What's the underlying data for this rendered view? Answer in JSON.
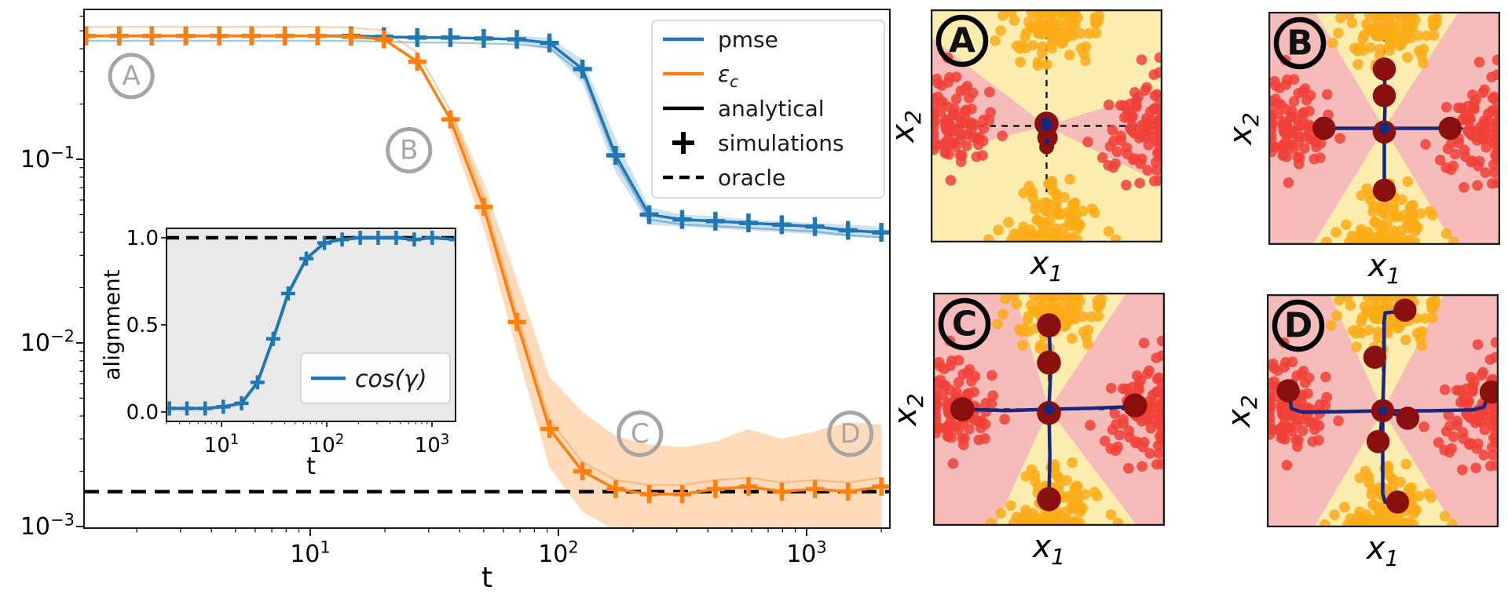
{
  "colors": {
    "blue": "#1f77b4",
    "orange": "#ff7f0e",
    "black": "#000000",
    "gray_annotation": "#a6a6a6",
    "inset_bg": "#e9e9e9",
    "panel_yellow": "#fcecae",
    "panel_pink": "#f6bcba",
    "dot_yellow": "#fbab17",
    "dot_red": "#f04137",
    "neuron_maroon": "#8a1010",
    "neuron_navy": "#17277d",
    "spine": "#1a1a1a"
  },
  "panels_labels": {
    "ylabel_base": "x",
    "ylabel_sub": "2",
    "xlabel_base": "x",
    "xlabel_sub": "1"
  },
  "chart_data": [
    {
      "id": "main",
      "type": "line",
      "xscale": "log",
      "yscale": "log",
      "xlabel": "t",
      "ylabel": "",
      "xlim": [
        1.15,
        2150
      ],
      "ylim": [
        0.00095,
        0.68
      ],
      "x_tick_labels": [
        {
          "base": "10",
          "sup": "1",
          "t": 10
        },
        {
          "base": "10",
          "sup": "2",
          "t": 100
        },
        {
          "base": "10",
          "sup": "3",
          "t": 1000
        }
      ],
      "y_tick_labels": [
        {
          "base": "10",
          "sup": "−1",
          "v": 0.1
        },
        {
          "base": "10",
          "sup": "−2",
          "v": 0.01
        },
        {
          "base": "10",
          "sup": "−3",
          "v": 0.001
        }
      ],
      "t": [
        1.25,
        1.7,
        2.3,
        3.15,
        4.3,
        5.8,
        7.9,
        10.7,
        14.6,
        19.8,
        27,
        36.7,
        50,
        68,
        92,
        125,
        170,
        232,
        315,
        429,
        583,
        794,
        1080,
        1468,
        2000
      ],
      "series": [
        {
          "name": "pmse",
          "color": "#1f77b4",
          "values": [
            0.47,
            0.47,
            0.47,
            0.47,
            0.47,
            0.47,
            0.47,
            0.47,
            0.47,
            0.465,
            0.46,
            0.46,
            0.455,
            0.45,
            0.43,
            0.31,
            0.105,
            0.05,
            0.047,
            0.046,
            0.045,
            0.044,
            0.043,
            0.041,
            0.04
          ]
        },
        {
          "name": "eps_c",
          "color": "#ff7f0e",
          "values": [
            0.47,
            0.47,
            0.47,
            0.47,
            0.47,
            0.47,
            0.47,
            0.47,
            0.465,
            0.45,
            0.34,
            0.165,
            0.055,
            0.013,
            0.0034,
            0.002,
            0.0016,
            0.0015,
            0.0015,
            0.0016,
            0.00165,
            0.00155,
            0.0016,
            0.00155,
            0.00165
          ]
        }
      ],
      "oracle_value": 0.00155,
      "bands": {
        "orange": {
          "t": [
            36.7,
            50,
            68,
            92,
            125,
            170,
            232,
            315,
            429,
            583,
            794,
            1080,
            1468,
            2000
          ],
          "upper": [
            0.19,
            0.075,
            0.022,
            0.0065,
            0.0042,
            0.0031,
            0.0028,
            0.0027,
            0.0029,
            0.0034,
            0.003,
            0.0033,
            0.0037,
            0.0036
          ],
          "lower": [
            0.14,
            0.042,
            0.009,
            0.0021,
            0.0012,
            0.00095,
            0.00095,
            0.00095,
            0.00095,
            0.00095,
            0.00095,
            0.00095,
            0.00095,
            0.00095
          ]
        },
        "blue": {
          "t": [
            68,
            92,
            125,
            170,
            232,
            315,
            429,
            583,
            794,
            1080,
            1468,
            2000
          ],
          "upper": [
            0.47,
            0.46,
            0.35,
            0.13,
            0.055,
            0.05,
            0.049,
            0.047,
            0.046,
            0.045,
            0.044,
            0.043
          ],
          "lower": [
            0.43,
            0.4,
            0.26,
            0.085,
            0.044,
            0.043,
            0.042,
            0.041,
            0.04,
            0.039,
            0.038,
            0.037
          ]
        }
      },
      "legend": [
        {
          "label": "pmse",
          "style": "line",
          "color": "#1f77b4",
          "italic": false
        },
        {
          "label": "ε",
          "sub": "c",
          "style": "line",
          "color": "#ff7f0e",
          "italic": true
        },
        {
          "label": "analytical",
          "style": "line",
          "color": "#000000",
          "italic": false
        },
        {
          "label": "simulations",
          "style": "marker",
          "color": "#000000",
          "italic": false
        },
        {
          "label": "oracle",
          "style": "dash",
          "color": "#000000",
          "italic": false
        }
      ],
      "annotations": [
        {
          "label": "A",
          "t": 1.9,
          "v": 0.284
        },
        {
          "label": "B",
          "t": 25,
          "v": 0.112
        },
        {
          "label": "C",
          "t": 213,
          "v": 0.0032
        },
        {
          "label": "D",
          "t": 1500,
          "v": 0.0032
        }
      ]
    },
    {
      "id": "inset",
      "type": "line",
      "xscale": "log",
      "xlabel": "t",
      "ylabel": "alignment",
      "xlim": [
        3,
        1800
      ],
      "ylim": [
        -0.054,
        1.054
      ],
      "y_ticks": [
        "0.0",
        "0.5",
        "1.0"
      ],
      "x_tick_labels": [
        {
          "base": "10",
          "sup": "1",
          "t": 10
        },
        {
          "base": "10",
          "sup": "2",
          "t": 100
        },
        {
          "base": "10",
          "sup": "3",
          "t": 1000
        }
      ],
      "oracle_value": 1.0,
      "t": [
        3.2,
        4.7,
        7,
        10.4,
        15.5,
        22,
        31,
        43,
        64,
        95,
        140,
        208,
        308,
        457,
        678,
        1005,
        1700
      ],
      "series": [
        {
          "name": "cos(γ)",
          "color": "#1f77b4",
          "values": [
            0.02,
            0.02,
            0.02,
            0.03,
            0.05,
            0.17,
            0.42,
            0.68,
            0.88,
            0.97,
            0.99,
            1.0,
            1.0,
            1.0,
            0.99,
            1.0,
            0.99
          ]
        }
      ],
      "legend": [
        {
          "label": "cos(γ)",
          "style": "line",
          "color": "#1f77b4",
          "italic": true
        }
      ]
    },
    {
      "id": "panels",
      "type": "scatter",
      "axes_range": [
        -2.5,
        2.5
      ],
      "clusters": [
        {
          "color": "#fbab17",
          "cx": 0.05,
          "cy": 2.0,
          "sx": 0.5,
          "sy": 0.42,
          "n": 95
        },
        {
          "color": "#fbab17",
          "cx": 0.05,
          "cy": -2.05,
          "sx": 0.5,
          "sy": 0.42,
          "n": 95
        },
        {
          "color": "#f04137",
          "cx": -2.05,
          "cy": 0.1,
          "sx": 0.42,
          "sy": 0.5,
          "n": 90
        },
        {
          "color": "#f04137",
          "cx": 2.1,
          "cy": -0.05,
          "sx": 0.42,
          "sy": 0.5,
          "n": 90
        }
      ],
      "seed": 12345,
      "panels": [
        {
          "label": "A",
          "wedges": [
            [
              [
                -2.5,
                1.9
              ],
              [
                0,
                0
              ],
              [
                -2.5,
                -0.62
              ]
            ],
            [
              [
                2.5,
                0.8
              ],
              [
                0,
                0
              ],
              [
                2.5,
                -1.25
              ]
            ]
          ],
          "neurons": [
            {
              "x": 0,
              "y": 0.05,
              "r": 0.26
            },
            {
              "x": 0.02,
              "y": -0.25,
              "r": 0.22
            },
            {
              "x": 0,
              "y": -0.45,
              "r": 0.16
            }
          ],
          "navy_dots": [
            {
              "x": -0.02,
              "y": 0.1,
              "r": 0.1
            },
            {
              "x": 0.05,
              "y": 0.0,
              "r": 0.08
            },
            {
              "x": -0.04,
              "y": -0.04,
              "r": 0.07
            },
            {
              "x": 0.01,
              "y": -0.32,
              "r": 0.06
            }
          ],
          "trajectories": []
        },
        {
          "label": "B",
          "wedges": [
            [
              [
                0,
                0
              ],
              [
                -1.5,
                2.5
              ],
              [
                -2.5,
                2.5
              ],
              [
                -2.5,
                -2.5
              ],
              [
                -1.55,
                -2.5
              ]
            ],
            [
              [
                0,
                0
              ],
              [
                1.6,
                2.5
              ],
              [
                2.5,
                2.5
              ],
              [
                2.5,
                -2.5
              ],
              [
                1.5,
                -2.5
              ]
            ]
          ],
          "neurons": [
            {
              "x": 0,
              "y": 1.27,
              "r": 0.25
            },
            {
              "x": 0,
              "y": 0.7,
              "r": 0.25
            },
            {
              "x": -1.3,
              "y": 0,
              "r": 0.25
            },
            {
              "x": 1.42,
              "y": 0,
              "r": 0.25
            },
            {
              "x": 0,
              "y": -0.08,
              "r": 0.25
            },
            {
              "x": 0,
              "y": -1.33,
              "r": 0.25
            }
          ],
          "navy_dots": [
            {
              "x": 0,
              "y": 0,
              "r": 0.12
            }
          ],
          "trajectories": [
            [
              [
                0,
                1.27
              ],
              [
                0.02,
                0.6
              ],
              [
                0,
                0
              ]
            ],
            [
              [
                -1.3,
                0
              ],
              [
                0,
                0
              ]
            ],
            [
              [
                1.42,
                0
              ],
              [
                0,
                0
              ]
            ],
            [
              [
                0,
                -1.33
              ],
              [
                0,
                0
              ]
            ]
          ]
        },
        {
          "label": "C",
          "wedges": [
            [
              [
                0,
                0
              ],
              [
                -0.75,
                2.5
              ],
              [
                -2.5,
                2.5
              ],
              [
                -2.5,
                -2.5
              ],
              [
                -1.15,
                -2.5
              ]
            ],
            [
              [
                0,
                0
              ],
              [
                1.68,
                2.5
              ],
              [
                2.5,
                2.5
              ],
              [
                2.5,
                -2.5
              ],
              [
                1.9,
                -2.5
              ]
            ]
          ],
          "neurons": [
            {
              "x": 0,
              "y": 1.8,
              "r": 0.26
            },
            {
              "x": 0,
              "y": 1.0,
              "r": 0.26
            },
            {
              "x": -1.87,
              "y": 0,
              "r": 0.26
            },
            {
              "x": 1.86,
              "y": 0.08,
              "r": 0.26
            },
            {
              "x": 0,
              "y": -0.08,
              "r": 0.26
            },
            {
              "x": 0,
              "y": -1.93,
              "r": 0.26
            }
          ],
          "navy_dots": [
            {
              "x": 0,
              "y": 0,
              "r": 0.12
            }
          ],
          "trajectories": [
            [
              [
                0,
                1.8
              ],
              [
                0.04,
                0.9
              ],
              [
                0,
                0
              ],
              [
                0.02,
                -1.0
              ],
              [
                0,
                -1.93
              ]
            ],
            [
              [
                -1.87,
                0
              ],
              [
                -0.9,
                -0.03
              ],
              [
                0,
                0
              ],
              [
                0.9,
                0.02
              ],
              [
                1.86,
                0.06
              ]
            ]
          ]
        },
        {
          "label": "D",
          "wedges": [
            [
              [
                0,
                0
              ],
              [
                -1.14,
                2.5
              ],
              [
                -2.5,
                2.5
              ],
              [
                -2.5,
                -2.5
              ],
              [
                -1.48,
                -2.5
              ]
            ],
            [
              [
                0,
                0
              ],
              [
                1.33,
                2.5
              ],
              [
                2.5,
                2.5
              ],
              [
                2.5,
                -2.5
              ],
              [
                1.55,
                -2.5
              ]
            ]
          ],
          "neurons": [
            {
              "x": 0.48,
              "y": 2.16,
              "r": 0.25
            },
            {
              "x": -0.17,
              "y": 1.15,
              "r": 0.25
            },
            {
              "x": -2.04,
              "y": 0.43,
              "r": 0.25
            },
            {
              "x": 2.34,
              "y": 0.4,
              "r": 0.25
            },
            {
              "x": 0,
              "y": 0,
              "r": 0.25
            },
            {
              "x": 0.54,
              "y": -0.16,
              "r": 0.25
            },
            {
              "x": -0.1,
              "y": -0.66,
              "r": 0.25
            },
            {
              "x": 0.32,
              "y": -1.96,
              "r": 0.25
            }
          ],
          "navy_dots": [
            {
              "x": 0,
              "y": 0,
              "r": 0.1
            }
          ],
          "trajectories": [
            [
              [
                0,
                0
              ],
              [
                0.03,
                1.0
              ],
              [
                0.03,
                1.9
              ],
              [
                0.05,
                2.1
              ],
              [
                0.44,
                2.14
              ]
            ],
            [
              [
                0.03,
                1.15
              ],
              [
                -0.14,
                1.15
              ]
            ],
            [
              [
                0,
                0
              ],
              [
                -1.0,
                -0.02
              ],
              [
                -1.75,
                -0.03
              ],
              [
                -1.97,
                0.05
              ],
              [
                -2.02,
                0.4
              ]
            ],
            [
              [
                0,
                0
              ],
              [
                1.0,
                0.0
              ],
              [
                1.95,
                0.02
              ],
              [
                2.18,
                0.08
              ],
              [
                2.3,
                0.38
              ]
            ],
            [
              [
                0,
                0
              ],
              [
                0.0,
                -1.1
              ],
              [
                0.0,
                -1.78
              ],
              [
                0.05,
                -1.96
              ],
              [
                0.3,
                -1.96
              ]
            ],
            [
              [
                0,
                0
              ],
              [
                -0.06,
                -0.55
              ],
              [
                -0.1,
                -0.64
              ]
            ],
            [
              [
                0,
                0
              ],
              [
                0.5,
                -0.14
              ]
            ]
          ]
        }
      ]
    }
  ]
}
